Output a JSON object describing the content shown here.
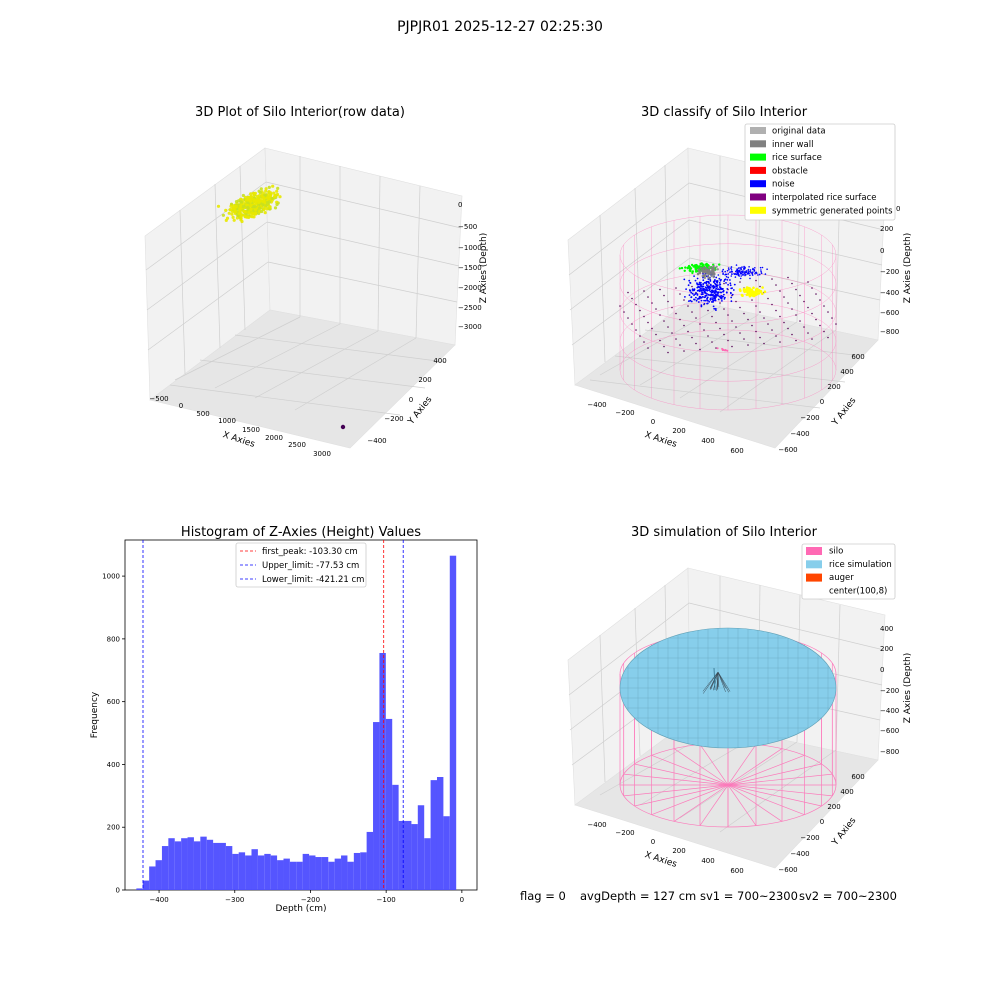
{
  "suptitle": "PJPJR01 2025-12-27 02:25:30",
  "status_line": {
    "flag": "flag = 0",
    "avg_depth": "avgDepth = 127 cm",
    "sv1": "sv1 = 700~2300",
    "sv2": "sv2 = 700~2300"
  },
  "colors": {
    "histogram_bar": "#4c4cff",
    "peak_line": "#ff0000",
    "limit_line": "#0000ff",
    "silo": "#ff69b4",
    "rice_simulation": "#87ceeb",
    "auger": "#ff4500",
    "noise": "#0000ff",
    "rice_surface": "#00ff00",
    "inner_wall": "#808080",
    "symmetric": "#ffff00",
    "raw_points": "#e8e800"
  },
  "chart_data": [
    {
      "type": "scatter",
      "projection": "3d",
      "title": "3D Plot of Silo Interior(row data)",
      "xlabel": "X Axies",
      "ylabel": "Y Axies",
      "zlabel": "Z Axies (Depth)",
      "x_ticks": [
        "−500",
        "0",
        "500",
        "1000",
        "1500",
        "2000",
        "2500",
        "3000"
      ],
      "y_ticks": [
        "−400",
        "−200",
        "0",
        "200",
        "400"
      ],
      "z_ticks": [
        "0",
        "−500",
        "−1000",
        "−1500",
        "−2000",
        "−2500",
        "−3000"
      ],
      "description_of_points": "dense yellow-green cluster of raw points near top-left corner; one dark outlier point",
      "grid": true
    },
    {
      "type": "scatter",
      "projection": "3d",
      "title": "3D classify of Silo Interior",
      "xlabel": "X Axies",
      "ylabel": "Y Axies",
      "zlabel": "Z Axies (Depth)",
      "x_ticks": [
        "−400",
        "−200",
        "0",
        "200",
        "400",
        "600"
      ],
      "y_ticks": [
        "−600",
        "−400",
        "−200",
        "0",
        "200",
        "400",
        "600"
      ],
      "z_ticks": [
        "200",
        "0",
        "−200",
        "−400",
        "−600",
        "−800"
      ],
      "z_top_tick_partial": "0",
      "legend": [
        {
          "label": "original data",
          "color": "#b0b0b0"
        },
        {
          "label": "inner wall",
          "color": "#808080"
        },
        {
          "label": "rice surface",
          "color": "#00ff00"
        },
        {
          "label": "obstacle",
          "color": "#ff0000"
        },
        {
          "label": "noise",
          "color": "#0000ff"
        },
        {
          "label": "interpolated rice surface",
          "color": "#800080"
        },
        {
          "label": "symmetric generated points",
          "color": "#ffff00"
        }
      ],
      "legend_position": "top-right",
      "grid": true
    },
    {
      "type": "bar",
      "title": "Histogram of Z-Axies (Height) Values",
      "xlabel": "Depth (cm)",
      "ylabel": "Frequency",
      "xlim": [
        -445,
        20
      ],
      "ylim": [
        0,
        1115
      ],
      "x_ticks": [
        -400,
        -300,
        -200,
        -100,
        0
      ],
      "x_tick_labels": [
        "−400",
        "−300",
        "−200",
        "−100",
        "0"
      ],
      "y_ticks": [
        0,
        200,
        400,
        600,
        800,
        1000
      ],
      "bin_width": 8.45,
      "bin_start": -430,
      "values": [
        5,
        30,
        75,
        95,
        140,
        165,
        155,
        165,
        168,
        155,
        170,
        160,
        150,
        150,
        140,
        115,
        120,
        110,
        130,
        110,
        115,
        110,
        95,
        100,
        90,
        90,
        115,
        110,
        105,
        105,
        90,
        100,
        110,
        90,
        118,
        120,
        185,
        535,
        755,
        545,
        335,
        220,
        220,
        210,
        270,
        165,
        350,
        360,
        235,
        1065
      ],
      "vlines": [
        {
          "label": "first_peak: -103.30 cm",
          "x": -103.3,
          "color": "#ff0000"
        },
        {
          "label": "Upper_limit: -77.53 cm",
          "x": -77.53,
          "color": "#0000ff"
        },
        {
          "label": "Lower_limit: -421.21 cm",
          "x": -421.21,
          "color": "#0000ff"
        }
      ],
      "legend_position": "top-center",
      "grid": false
    },
    {
      "type": "surface",
      "projection": "3d",
      "title": "3D simulation of Silo Interior",
      "xlabel": "X Axies",
      "ylabel": "Y Axies",
      "zlabel": "Z Axies (Depth)",
      "x_ticks": [
        "−400",
        "−200",
        "0",
        "200",
        "400",
        "600"
      ],
      "y_ticks": [
        "−600",
        "−400",
        "−200",
        "0",
        "200",
        "400",
        "600"
      ],
      "z_ticks": [
        "400",
        "200",
        "0",
        "−200",
        "−400",
        "−600",
        "−800"
      ],
      "legend": [
        {
          "label": "silo",
          "color": "#ff69b4"
        },
        {
          "label": "rice simulation",
          "color": "#87ceeb"
        },
        {
          "label": "auger",
          "color": "#ff4500"
        },
        {
          "label": "center(100,8)",
          "color": "#ffffff"
        }
      ],
      "legend_position": "top-right",
      "grid": true
    }
  ]
}
